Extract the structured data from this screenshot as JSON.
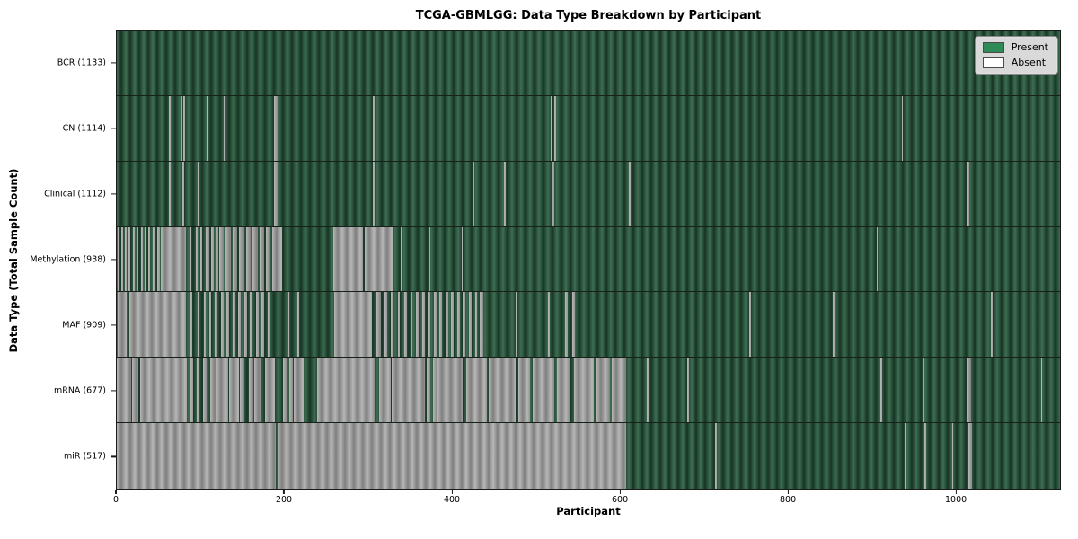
{
  "chart_data": {
    "type": "heatmap",
    "title": "TCGA-GBMLGG: Data Type Breakdown by Participant",
    "xlabel": "Participant",
    "ylabel": "Data Type (Total Sample Count)",
    "x_ticks": [
      0,
      200,
      400,
      600,
      800,
      1000
    ],
    "xlim": [
      0,
      1125
    ],
    "grid": false,
    "legend_position": "upper right",
    "legend": [
      {
        "label": "Present",
        "color": "#2e8b57"
      },
      {
        "label": "Absent",
        "color": "#ffffff"
      }
    ],
    "rows": [
      {
        "label": "BCR (1133)",
        "name": "BCR",
        "total_samples": 1133,
        "absent_ranges": []
      },
      {
        "label": "CN (1114)",
        "name": "CN",
        "total_samples": 1114,
        "absent_ranges": [
          [
            62,
            64
          ],
          [
            76,
            78
          ],
          [
            79,
            81
          ],
          [
            107,
            109
          ],
          [
            127,
            129
          ],
          [
            188,
            193
          ],
          [
            305,
            307
          ],
          [
            517,
            519
          ],
          [
            522,
            524
          ],
          [
            936,
            938
          ]
        ]
      },
      {
        "label": "Clinical (1112)",
        "name": "Clinical",
        "total_samples": 1112,
        "absent_ranges": [
          [
            62,
            64
          ],
          [
            78,
            80
          ],
          [
            96,
            98
          ],
          [
            188,
            193
          ],
          [
            305,
            307
          ],
          [
            424,
            426
          ],
          [
            462,
            464
          ],
          [
            519,
            522
          ],
          [
            611,
            613
          ],
          [
            1014,
            1017
          ]
        ]
      },
      {
        "label": "Methylation (938)",
        "name": "Methylation",
        "total_samples": 938,
        "absent_ranges": [
          [
            1,
            3
          ],
          [
            5,
            7
          ],
          [
            10,
            12
          ],
          [
            14,
            16
          ],
          [
            19,
            21
          ],
          [
            24,
            26
          ],
          [
            29,
            31
          ],
          [
            33,
            35
          ],
          [
            38,
            40
          ],
          [
            43,
            45
          ],
          [
            48,
            51
          ],
          [
            53,
            83
          ],
          [
            88,
            89
          ],
          [
            94,
            96
          ],
          [
            100,
            102
          ],
          [
            106,
            110
          ],
          [
            113,
            116
          ],
          [
            118,
            121
          ],
          [
            122,
            128
          ],
          [
            130,
            136
          ],
          [
            138,
            144
          ],
          [
            146,
            152
          ],
          [
            154,
            160
          ],
          [
            162,
            168
          ],
          [
            170,
            176
          ],
          [
            178,
            183
          ],
          [
            185,
            197
          ],
          [
            258,
            294
          ],
          [
            296,
            330
          ],
          [
            339,
            341
          ],
          [
            372,
            374
          ],
          [
            411,
            413
          ],
          [
            906,
            908
          ]
        ]
      },
      {
        "label": "MAF (909)",
        "name": "MAF",
        "total_samples": 909,
        "absent_ranges": [
          [
            1,
            12
          ],
          [
            15,
            83
          ],
          [
            88,
            90
          ],
          [
            96,
            98
          ],
          [
            104,
            106
          ],
          [
            110,
            113
          ],
          [
            117,
            120
          ],
          [
            124,
            127
          ],
          [
            131,
            134
          ],
          [
            138,
            141
          ],
          [
            145,
            148
          ],
          [
            152,
            155
          ],
          [
            159,
            162
          ],
          [
            166,
            169
          ],
          [
            173,
            176
          ],
          [
            180,
            183
          ],
          [
            205,
            206
          ],
          [
            215,
            217
          ],
          [
            259,
            304
          ],
          [
            310,
            315
          ],
          [
            319,
            322
          ],
          [
            327,
            330
          ],
          [
            335,
            338
          ],
          [
            343,
            346
          ],
          [
            350,
            353
          ],
          [
            357,
            360
          ],
          [
            364,
            367
          ],
          [
            371,
            374
          ],
          [
            378,
            381
          ],
          [
            385,
            388
          ],
          [
            392,
            395
          ],
          [
            399,
            402
          ],
          [
            406,
            409
          ],
          [
            413,
            416
          ],
          [
            420,
            423
          ],
          [
            427,
            430
          ],
          [
            433,
            437
          ],
          [
            476,
            478
          ],
          [
            514,
            516
          ],
          [
            535,
            538
          ],
          [
            543,
            546
          ],
          [
            754,
            756
          ],
          [
            854,
            856
          ],
          [
            1043,
            1045
          ]
        ]
      },
      {
        "label": "mRNA (677)",
        "name": "mRNA",
        "total_samples": 677,
        "absent_ranges": [
          [
            0,
            17
          ],
          [
            18,
            26
          ],
          [
            28,
            84
          ],
          [
            88,
            91
          ],
          [
            95,
            99
          ],
          [
            103,
            107
          ],
          [
            111,
            118
          ],
          [
            119,
            133
          ],
          [
            134,
            146
          ],
          [
            147,
            152
          ],
          [
            158,
            163
          ],
          [
            164,
            173
          ],
          [
            177,
            189
          ],
          [
            198,
            204
          ],
          [
            206,
            210
          ],
          [
            211,
            223
          ],
          [
            239,
            308
          ],
          [
            313,
            327
          ],
          [
            328,
            367
          ],
          [
            370,
            374
          ],
          [
            377,
            381
          ],
          [
            383,
            413
          ],
          [
            417,
            441
          ],
          [
            444,
            476
          ],
          [
            479,
            493
          ],
          [
            496,
            522
          ],
          [
            525,
            541
          ],
          [
            545,
            569
          ],
          [
            572,
            588
          ],
          [
            590,
            607
          ],
          [
            632,
            634
          ],
          [
            680,
            682
          ],
          [
            911,
            913
          ],
          [
            961,
            963
          ],
          [
            1014,
            1019
          ],
          [
            1102,
            1104
          ]
        ]
      },
      {
        "label": "miR (517)",
        "name": "miR",
        "total_samples": 517,
        "absent_ranges": [
          [
            0,
            190
          ],
          [
            192,
            607
          ],
          [
            714,
            716
          ],
          [
            940,
            942
          ],
          [
            963,
            965
          ],
          [
            996,
            998
          ],
          [
            1016,
            1020
          ]
        ]
      }
    ]
  }
}
